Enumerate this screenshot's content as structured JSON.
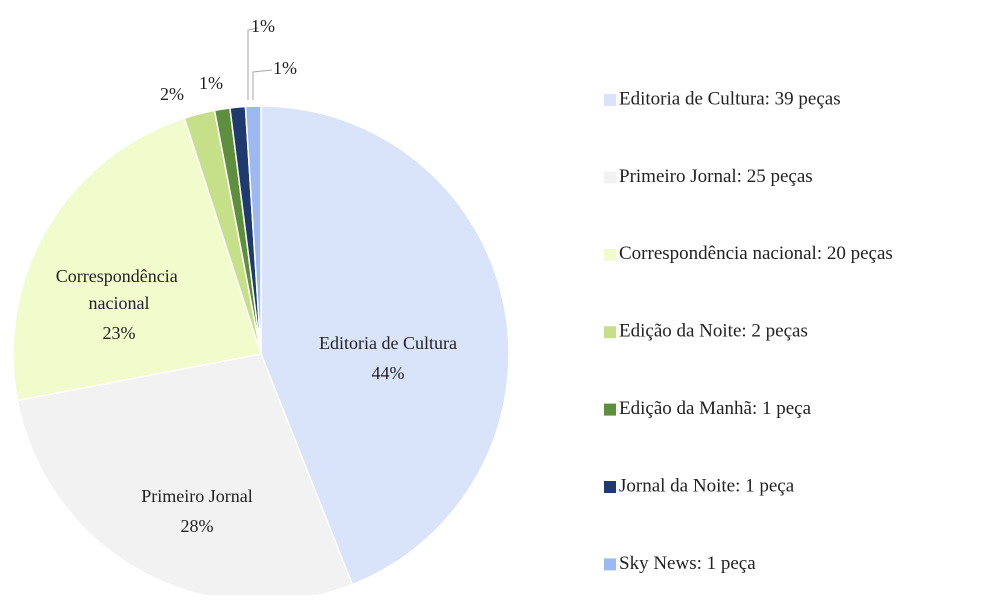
{
  "chart_data": {
    "type": "pie",
    "categories": [
      "Editoria de Cultura: 39 peças",
      "Primeiro Jornal: 25 peças",
      "Correspondência nacional: 20 peças",
      "Edição da Noite: 2 peças",
      "Edição da Manhã: 1 peça",
      "Jornal da Noite: 1 peça",
      "Sky News: 1 peça"
    ],
    "slice_labels": [
      "Editoria de Cultura",
      "Primeiro Jornal",
      "Correspondência nacional",
      null,
      null,
      null,
      null
    ],
    "values": [
      44,
      28,
      23,
      2,
      1,
      1,
      1
    ],
    "value_labels": [
      "44%",
      "28%",
      "23%",
      "2%",
      "1%",
      "1%",
      "1%"
    ],
    "colors": [
      "#d9e4fb",
      "#f2f2f2",
      "#f2fbcc",
      "#c6e08a",
      "#5e8f3f",
      "#1f3a6e",
      "#9db9f2"
    ],
    "legend": "right"
  }
}
